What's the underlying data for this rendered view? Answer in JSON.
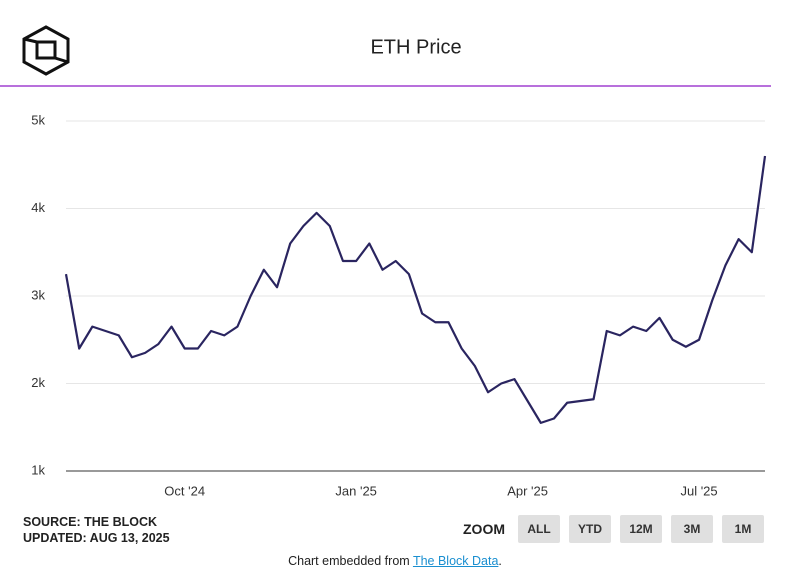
{
  "header": {
    "title": "ETH Price"
  },
  "chart_data": {
    "type": "line",
    "categories": [
      "",
      "",
      "",
      "",
      "",
      "",
      "",
      "",
      "",
      "Oct '24",
      "",
      "",
      "",
      "",
      "",
      "",
      "",
      "",
      "",
      "",
      "",
      "",
      "Jan '25",
      "",
      "",
      "",
      "",
      "",
      "",
      "",
      "",
      "",
      "",
      "",
      "",
      "Apr '25",
      "",
      "",
      "",
      "",
      "",
      "",
      "",
      "",
      "",
      "",
      "",
      "",
      "Jul '25",
      "",
      "",
      "",
      "",
      ""
    ],
    "series": [
      {
        "name": "ETH Price",
        "color": "#2a2560",
        "values": [
          3250,
          2400,
          2650,
          2600,
          2550,
          2300,
          2350,
          2450,
          2650,
          2400,
          2400,
          2600,
          2550,
          2650,
          3000,
          3300,
          3100,
          3600,
          3800,
          3950,
          3800,
          3400,
          3400,
          3600,
          3300,
          3400,
          3250,
          2800,
          2700,
          2700,
          2400,
          2200,
          1900,
          2000,
          2050,
          1800,
          1550,
          1600,
          1780,
          1800,
          1820,
          2600,
          2550,
          2650,
          2600,
          2750,
          2500,
          2420,
          2500,
          2950,
          3350,
          3650,
          3500,
          4600
        ]
      }
    ],
    "ylim": [
      1000,
      5000
    ],
    "yticks": [
      {
        "value": 1000,
        "label": "1k"
      },
      {
        "value": 2000,
        "label": "2k"
      },
      {
        "value": 3000,
        "label": "3k"
      },
      {
        "value": 4000,
        "label": "4k"
      },
      {
        "value": 5000,
        "label": "5k"
      }
    ],
    "grid": true
  },
  "footer": {
    "source": "SOURCE: THE BLOCK",
    "updated": "UPDATED: AUG 13, 2025",
    "zoom": "ZOOM",
    "buttons": [
      "ALL",
      "YTD",
      "12M",
      "3M",
      "1M"
    ],
    "embed_prefix": "Chart embedded from ",
    "embed_link": "The Block Data",
    "embed_suffix": "."
  }
}
